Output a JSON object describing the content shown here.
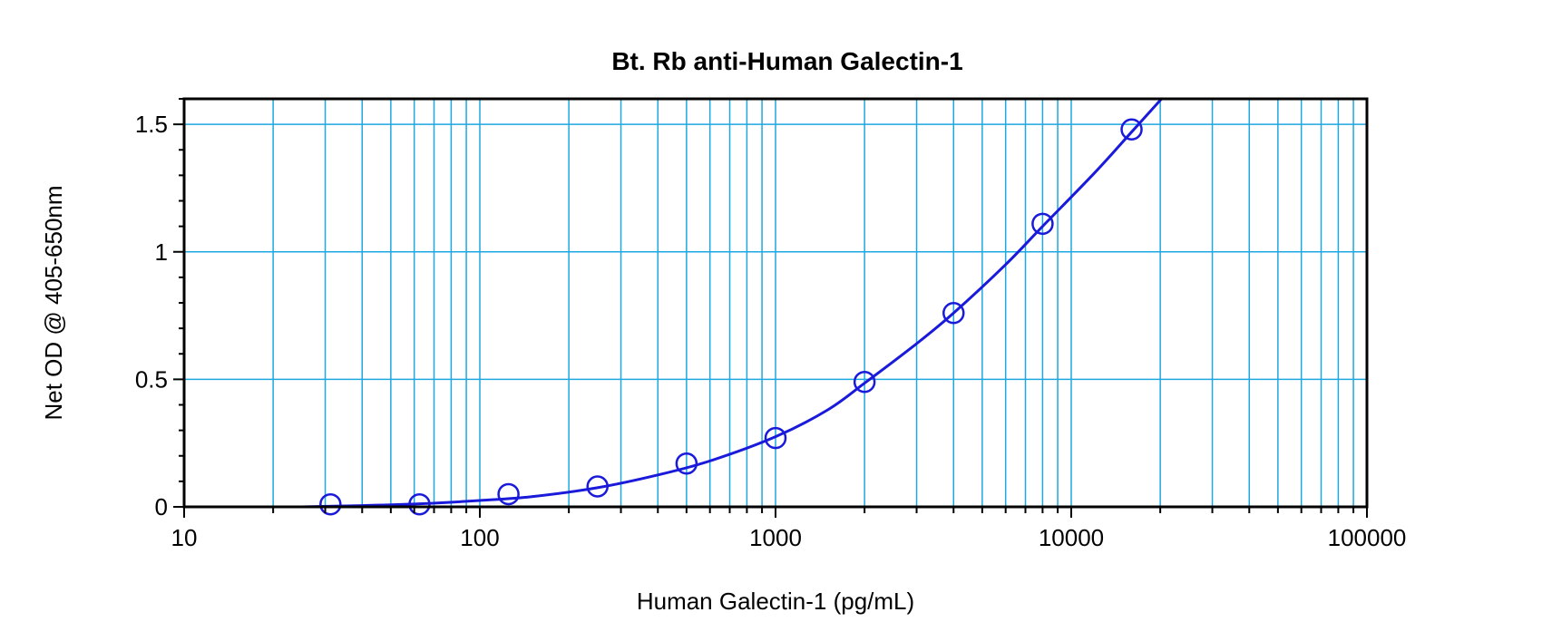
{
  "chart_data": {
    "type": "scatter",
    "title": "Bt. Rb anti-Human Galectin-1",
    "xlabel": "Human Galectin-1 (pg/mL)",
    "ylabel": "Net OD @ 405-650nm",
    "xscale": "log",
    "xlim": [
      10,
      100000
    ],
    "ylim": [
      0,
      1.6
    ],
    "x_ticks": [
      10,
      100,
      1000,
      10000,
      100000
    ],
    "x_tick_labels": [
      "10",
      "100",
      "1000",
      "10000",
      "100000"
    ],
    "y_ticks": [
      0,
      0.5,
      1,
      1.5
    ],
    "y_tick_labels": [
      "0",
      "0.5",
      "1",
      "1.5"
    ],
    "grid": true,
    "series": [
      {
        "marker": "open-circle",
        "x": [
          31.25,
          62.5,
          125,
          250,
          500,
          1000,
          2000,
          4000,
          8000,
          16000
        ],
        "y": [
          0.01,
          0.01,
          0.05,
          0.08,
          0.17,
          0.27,
          0.49,
          0.76,
          1.11,
          1.48
        ]
      }
    ],
    "fit_curve": {
      "x": [
        25,
        40,
        62.5,
        100,
        150,
        250,
        400,
        600,
        1000,
        1500,
        2000,
        3000,
        4000,
        6000,
        8000,
        12000,
        16000,
        20200
      ],
      "y": [
        0.0,
        0.005,
        0.012,
        0.025,
        0.04,
        0.075,
        0.125,
        0.18,
        0.275,
        0.38,
        0.485,
        0.64,
        0.76,
        0.95,
        1.1,
        1.31,
        1.47,
        1.6
      ]
    },
    "colors": {
      "series": "#1a1adb",
      "grid": "#1ea7e1",
      "axes": "#000000"
    }
  }
}
